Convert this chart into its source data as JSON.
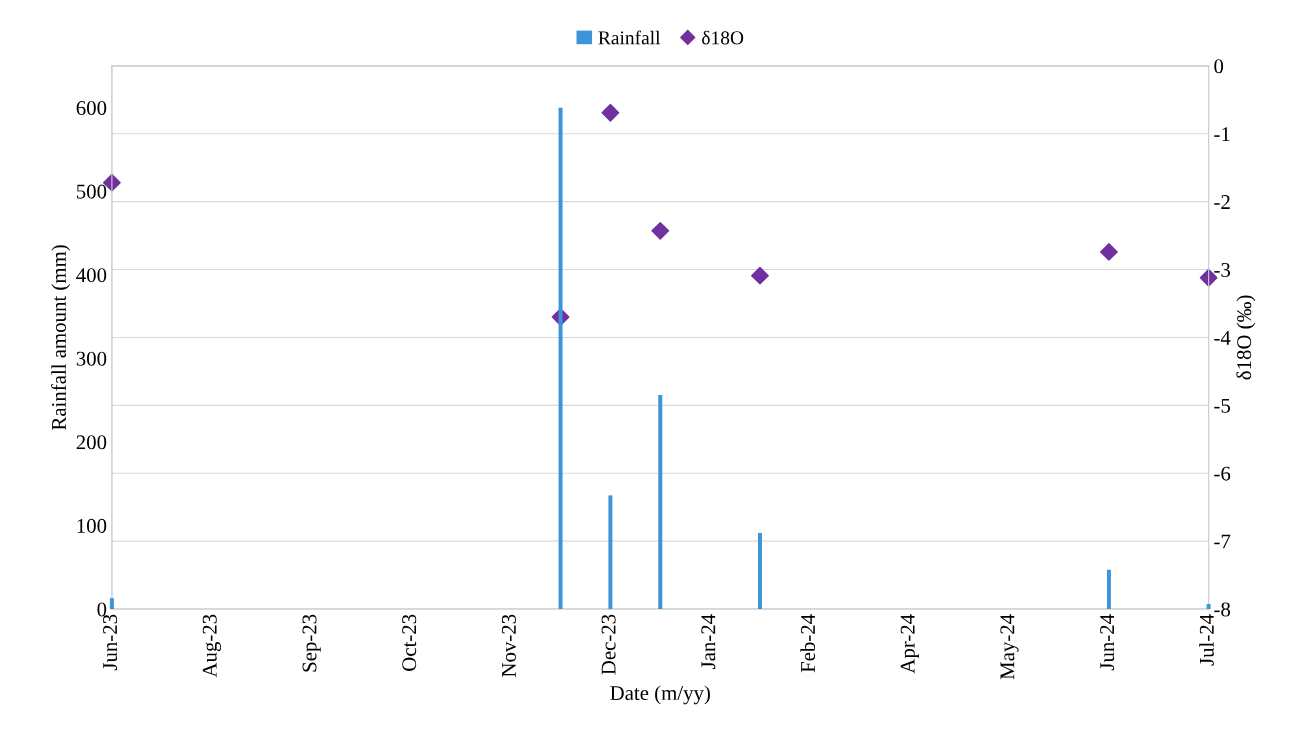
{
  "chart_data": {
    "type": "bar",
    "xlabel": "Date (m/yy)",
    "ylabel": "Rainfall amount (mm)",
    "y2label": "δ18O (‰)",
    "categories": [
      "Jun-23",
      null,
      null,
      null,
      null,
      null,
      null,
      null,
      null,
      null,
      "Aug-23",
      null,
      null,
      null,
      null,
      null,
      null,
      null,
      null,
      null,
      "Sep-23",
      null,
      null,
      null,
      null,
      null,
      null,
      null,
      null,
      null,
      "Oct-23",
      null,
      null,
      null,
      null,
      null,
      null,
      null,
      null,
      null,
      "Nov-23",
      null,
      null,
      null,
      null,
      null,
      null,
      null,
      null,
      null,
      "Dec-23",
      null,
      null,
      null,
      null,
      null,
      null,
      null,
      null,
      null,
      "Jan-24",
      null,
      null,
      null,
      null,
      null,
      null,
      null,
      null,
      null,
      "Feb-24",
      null,
      null,
      null,
      null,
      null,
      null,
      null,
      null,
      null,
      "Apr-24",
      null,
      null,
      null,
      null,
      null,
      null,
      null,
      null,
      null,
      "May-24",
      null,
      null,
      null,
      null,
      null,
      null,
      null,
      null,
      null,
      "Jun-24",
      null,
      null,
      null,
      null,
      null,
      null,
      null,
      null,
      null,
      "Jul-24"
    ],
    "ylim": [
      0,
      650
    ],
    "yticks": [
      0,
      100,
      200,
      300,
      400,
      500,
      600
    ],
    "y2lim": [
      -8,
      0
    ],
    "y2ticks": [
      -8,
      -7,
      -6,
      -5,
      -4,
      -3,
      -2,
      -1,
      0
    ],
    "grid": "y",
    "legend": "top",
    "series": [
      {
        "name": "Rainfall",
        "color": "#3d95d9",
        "values": [
          13,
          null,
          null,
          null,
          null,
          null,
          null,
          null,
          null,
          null,
          null,
          null,
          null,
          null,
          null,
          null,
          null,
          null,
          null,
          null,
          null,
          null,
          null,
          null,
          null,
          null,
          null,
          null,
          null,
          null,
          null,
          null,
          null,
          null,
          null,
          null,
          null,
          null,
          null,
          null,
          null,
          null,
          null,
          null,
          null,
          600,
          null,
          null,
          null,
          null,
          136,
          null,
          null,
          null,
          null,
          256,
          null,
          null,
          null,
          null,
          null,
          null,
          null,
          null,
          null,
          91,
          null,
          null,
          null,
          null,
          null,
          null,
          null,
          null,
          null,
          null,
          null,
          null,
          null,
          null,
          null,
          null,
          null,
          null,
          null,
          null,
          null,
          null,
          null,
          null,
          null,
          null,
          null,
          null,
          null,
          null,
          null,
          null,
          null,
          null,
          47,
          null,
          null,
          null,
          null,
          null,
          null,
          null,
          null,
          null,
          6
        ]
      },
      {
        "name": "δ18O",
        "type": "scatter",
        "axis": "y2",
        "marker": "diamond",
        "color": "#7030a0",
        "values": [
          -1.72,
          null,
          null,
          null,
          null,
          null,
          null,
          null,
          null,
          null,
          null,
          null,
          null,
          null,
          null,
          null,
          null,
          null,
          null,
          null,
          null,
          null,
          null,
          null,
          null,
          null,
          null,
          null,
          null,
          null,
          null,
          null,
          null,
          null,
          null,
          null,
          null,
          null,
          null,
          null,
          null,
          null,
          null,
          null,
          null,
          -3.7,
          null,
          null,
          null,
          null,
          -0.69,
          null,
          null,
          null,
          null,
          -2.43,
          null,
          null,
          null,
          null,
          null,
          null,
          null,
          null,
          null,
          -3.09,
          null,
          null,
          null,
          null,
          null,
          null,
          null,
          null,
          null,
          null,
          null,
          null,
          null,
          null,
          null,
          null,
          null,
          null,
          null,
          null,
          null,
          null,
          null,
          null,
          null,
          null,
          null,
          null,
          null,
          null,
          null,
          null,
          null,
          null,
          -2.74,
          null,
          null,
          null,
          null,
          null,
          null,
          null,
          null,
          null,
          -3.12
        ]
      }
    ]
  }
}
